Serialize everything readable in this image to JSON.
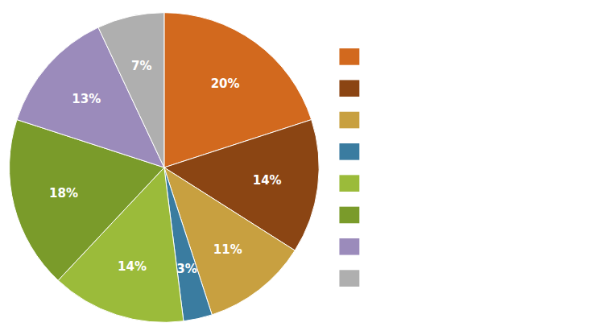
{
  "chart_data": {
    "type": "pie",
    "values": [
      20,
      14,
      11,
      3,
      14,
      18,
      13,
      7
    ],
    "value_labels": [
      "20%",
      "14%",
      "11%",
      "3%",
      "14%",
      "18%",
      "13%",
      "7%"
    ],
    "colors": [
      "#D2691E",
      "#8B4513",
      "#C8A040",
      "#3A7CA0",
      "#9BBB3A",
      "#7A9B2A",
      "#9B8BBB",
      "#AFAFAF"
    ],
    "data_labels": true,
    "legend": "right"
  }
}
